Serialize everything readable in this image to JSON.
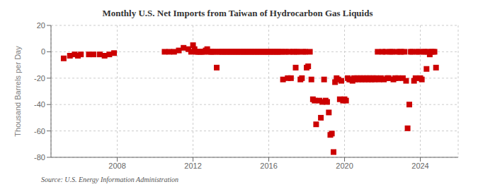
{
  "chart_data": {
    "type": "scatter",
    "title": "Monthly U.S. Net Imports from Taiwan of Hydrocarbon Gas Liquids",
    "y_label": "Thousand Barrels per Day",
    "annotations": [
      "Source: U.S. Energy Information Administration"
    ],
    "color": "#cc0000",
    "marker": "square",
    "grid": true,
    "xlim": [
      2004.5,
      2026.0
    ],
    "xticks": [
      2008,
      2012,
      2016,
      2020,
      2024
    ],
    "ylim": [
      -80,
      20
    ],
    "yticks": [
      -80,
      -60,
      -40,
      -20,
      0,
      20
    ],
    "x": [
      2005.17,
      2005.5,
      2005.75,
      2005.92,
      2006.08,
      2006.5,
      2006.75,
      2007.08,
      2007.33,
      2007.58,
      2007.83,
      2010.5,
      2010.75,
      2011.0,
      2011.25,
      2011.5,
      2011.75,
      2011.9,
      2012.0,
      2012.08,
      2012.17,
      2012.25,
      2012.33,
      2012.42,
      2012.5,
      2012.58,
      2012.67,
      2012.75,
      2012.83,
      2012.92,
      2013.0,
      2013.08,
      2013.17,
      2013.25,
      2013.33,
      2013.42,
      2013.5,
      2013.58,
      2013.67,
      2013.75,
      2013.83,
      2013.92,
      2014.0,
      2014.08,
      2014.17,
      2014.25,
      2014.33,
      2014.42,
      2014.5,
      2014.58,
      2014.67,
      2014.75,
      2014.83,
      2014.92,
      2015.0,
      2015.08,
      2015.17,
      2015.25,
      2015.33,
      2015.42,
      2015.5,
      2015.58,
      2015.67,
      2015.75,
      2015.83,
      2015.92,
      2016.0,
      2016.08,
      2016.17,
      2016.25,
      2016.33,
      2016.42,
      2016.5,
      2016.58,
      2016.67,
      2016.75,
      2016.83,
      2016.92,
      2017.0,
      2017.08,
      2017.17,
      2017.25,
      2017.33,
      2017.42,
      2017.5,
      2017.58,
      2017.67,
      2017.75,
      2017.83,
      2017.92,
      2018.0,
      2018.08,
      2018.17,
      2018.25,
      2018.33,
      2018.42,
      2018.5,
      2018.67,
      2018.75,
      2018.83,
      2018.92,
      2019.0,
      2019.08,
      2019.17,
      2019.25,
      2019.33,
      2019.42,
      2019.5,
      2019.58,
      2019.67,
      2019.75,
      2019.83,
      2019.92,
      2020.0,
      2020.08,
      2020.17,
      2020.25,
      2020.33,
      2020.42,
      2020.5,
      2020.58,
      2020.67,
      2020.75,
      2020.83,
      2020.92,
      2021.0,
      2021.08,
      2021.17,
      2021.25,
      2021.33,
      2021.42,
      2021.5,
      2021.58,
      2021.67,
      2021.75,
      2021.83,
      2021.92,
      2022.0,
      2022.08,
      2022.17,
      2022.25,
      2022.33,
      2022.42,
      2022.5,
      2022.58,
      2022.67,
      2022.75,
      2022.83,
      2022.92,
      2023.0,
      2023.08,
      2023.17,
      2023.25,
      2023.33,
      2023.42,
      2023.5,
      2023.58,
      2023.67,
      2023.75,
      2023.83,
      2023.92,
      2024.0,
      2024.08,
      2024.17,
      2024.25,
      2024.33,
      2024.42,
      2024.5,
      2024.58,
      2024.67,
      2024.75,
      2024.83
    ],
    "values": [
      -5,
      -3,
      -2,
      -3,
      -2,
      -2,
      -2,
      -2,
      -3,
      -2,
      -1,
      0,
      0,
      0,
      1,
      3,
      2,
      0,
      5,
      2,
      0,
      0,
      0,
      0,
      0,
      0,
      1,
      2,
      0,
      0,
      0,
      0,
      0,
      -12,
      0,
      0,
      0,
      0,
      0,
      0,
      0,
      0,
      0,
      0,
      0,
      0,
      0,
      0,
      0,
      0,
      0,
      0,
      0,
      0,
      0,
      0,
      0,
      0,
      0,
      0,
      0,
      0,
      0,
      0,
      0,
      0,
      0,
      0,
      0,
      0,
      0,
      0,
      0,
      0,
      0,
      -21,
      0,
      0,
      -20,
      0,
      -20,
      0,
      0,
      -12,
      0,
      0,
      -21,
      -20,
      0,
      0,
      -12,
      -11,
      0,
      -21,
      -36,
      -37,
      -55,
      -37,
      -50,
      -38,
      -21,
      -37,
      -38,
      -46,
      -63,
      -62,
      -76,
      -23,
      -20,
      -21,
      -36,
      -22,
      -37,
      -36,
      -37,
      -20,
      -21,
      -21,
      -22,
      -20,
      -21,
      -20,
      -21,
      -20,
      -21,
      -20,
      -21,
      -20,
      -21,
      -20,
      -21,
      -20,
      -21,
      -20,
      0,
      -21,
      -20,
      0,
      -21,
      0,
      -20,
      -20,
      0,
      0,
      -21,
      -20,
      0,
      -20,
      0,
      0,
      -20,
      0,
      -22,
      -58,
      -40,
      0,
      0,
      -22,
      -20,
      0,
      0,
      -20,
      -21,
      0,
      0,
      -13,
      0,
      -2,
      0,
      0,
      0,
      -12
    ]
  }
}
